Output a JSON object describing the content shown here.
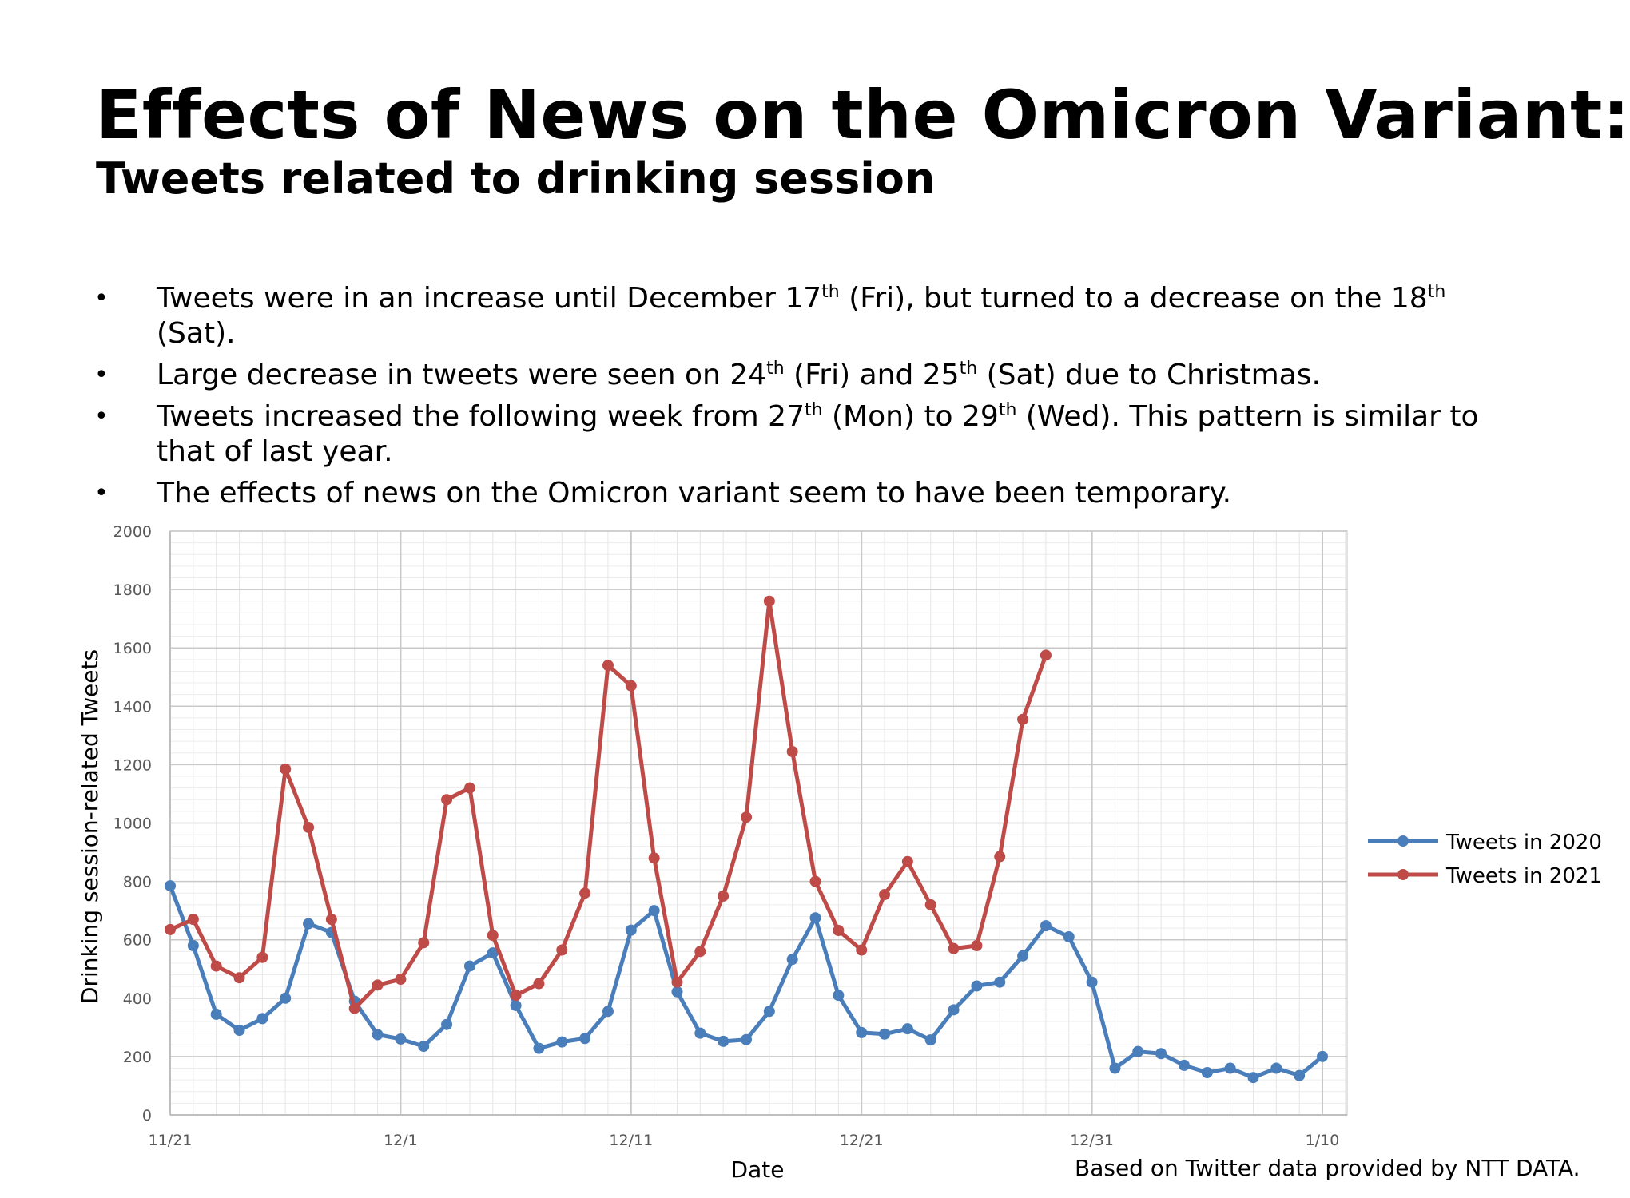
{
  "header": {
    "title": "Effects of News on the Omicron Variant:",
    "subtitle": "Tweets related to drinking session"
  },
  "bullets": [
    {
      "parts": [
        {
          "t": "Tweets were in an increase until December 17"
        },
        {
          "t": "th",
          "sup": true
        },
        {
          "t": " (Fri), but turned to a decrease on the 18"
        },
        {
          "t": "th",
          "sup": true
        },
        {
          "t": " (Sat)."
        }
      ]
    },
    {
      "parts": [
        {
          "t": "Large decrease in tweets were seen on 24"
        },
        {
          "t": "th",
          "sup": true
        },
        {
          "t": " (Fri) and 25"
        },
        {
          "t": "th",
          "sup": true
        },
        {
          "t": " (Sat) due to Christmas."
        }
      ]
    },
    {
      "parts": [
        {
          "t": "Tweets increased the following week from 27"
        },
        {
          "t": "th",
          "sup": true
        },
        {
          "t": " (Mon) to 29"
        },
        {
          "t": "th",
          "sup": true
        },
        {
          "t": " (Wed). This pattern is similar to that of last year."
        }
      ]
    },
    {
      "parts": [
        {
          "t": "The effects of news on the Omicron variant seem to have been temporary."
        }
      ]
    }
  ],
  "bullet_symbol": "•",
  "source_note": "Based on Twitter data provided by NTT DATA.",
  "chart_data": {
    "type": "line",
    "xlabel": "Date",
    "ylabel": "Drinking session-related Tweets",
    "x_start": "11/21",
    "x_end": "1/10",
    "x_tick_labels": [
      "11/21",
      "12/1",
      "12/11",
      "12/21",
      "12/31",
      "1/10"
    ],
    "ylim": [
      0,
      2000
    ],
    "y_ticks": [
      0,
      200,
      400,
      600,
      800,
      1000,
      1200,
      1400,
      1600,
      1800,
      2000
    ],
    "grid": true,
    "legend_position": "right",
    "series": [
      {
        "name": "Tweets in 2020",
        "color": "#4a7ebb",
        "values": [
          785,
          580,
          345,
          290,
          330,
          400,
          655,
          625,
          390,
          275,
          260,
          235,
          310,
          510,
          555,
          375,
          228,
          250,
          262,
          355,
          633,
          700,
          422,
          280,
          252,
          258,
          355,
          533,
          675,
          410,
          282,
          277,
          295,
          257,
          360,
          442,
          455,
          545,
          648,
          610,
          455,
          160,
          217,
          210,
          170,
          145,
          160,
          128,
          160,
          135,
          200
        ]
      },
      {
        "name": "Tweets in 2021",
        "color": "#be4b48",
        "values": [
          635,
          670,
          510,
          470,
          540,
          1185,
          985,
          670,
          365,
          445,
          465,
          590,
          1080,
          1120,
          615,
          410,
          450,
          565,
          760,
          1540,
          1470,
          880,
          455,
          560,
          750,
          1020,
          1760,
          1245,
          800,
          632,
          565,
          755,
          868,
          720,
          570,
          580,
          885,
          1355,
          1575
        ]
      }
    ]
  }
}
